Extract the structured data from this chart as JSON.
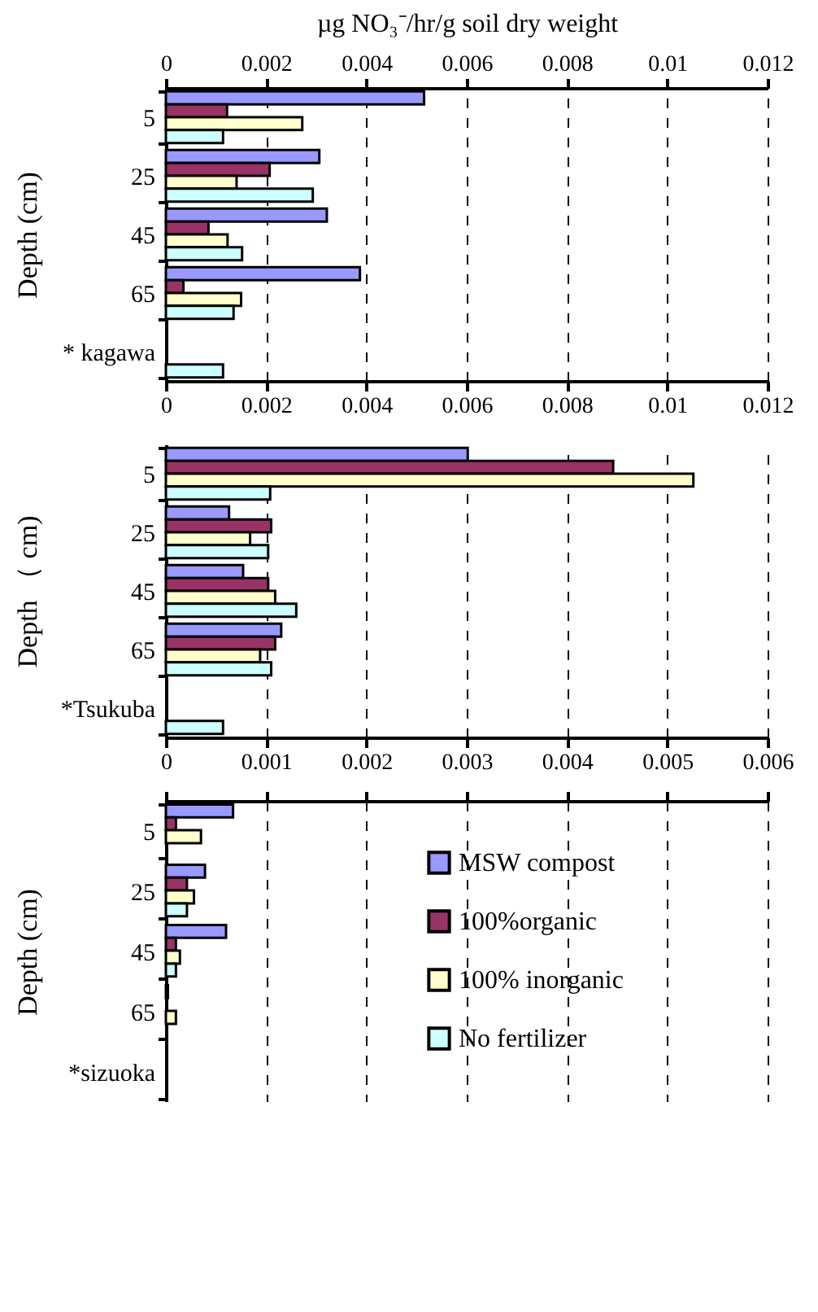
{
  "chart_data": [
    {
      "type": "bar",
      "orientation": "horizontal",
      "x2label": "µg NO₃⁻/hr/g soil dry weight",
      "ylabel": "Depth  (cm)",
      "categories": [
        "5",
        "25",
        "45",
        "65",
        "* kagawa"
      ],
      "series": [
        {
          "color": "#9999ff",
          "values": [
            0.00515,
            0.00306,
            0.00321,
            0.00387,
            null
          ]
        },
        {
          "color": "#993366",
          "values": [
            0.00122,
            0.00207,
            0.00085,
            0.00035,
            null
          ]
        },
        {
          "color": "#ffffcc",
          "values": [
            0.00272,
            0.00141,
            0.00123,
            0.0015,
            null
          ]
        },
        {
          "color": "#ccffff",
          "values": [
            0.00114,
            0.00293,
            0.00152,
            0.00135,
            0.00114
          ]
        }
      ],
      "xlim": [
        0,
        0.012
      ],
      "xticks": [
        0,
        0.002,
        0.004,
        0.006,
        0.008,
        0.01,
        0.012
      ],
      "x2lim": [
        0,
        0.012
      ],
      "x2ticks": [
        0,
        0.002,
        0.004,
        0.006,
        0.008,
        0.01,
        0.012
      ],
      "grid": "x"
    },
    {
      "type": "bar",
      "orientation": "horizontal",
      "ylabel": "Depth （ cm)",
      "categories": [
        "5",
        "25",
        "45",
        "65",
        "*Tsukuba"
      ],
      "series": [
        {
          "color": "#9999ff",
          "values": [
            0.00301,
            0.00063,
            0.00077,
            0.00115,
            null
          ]
        },
        {
          "color": "#993366",
          "values": [
            0.00446,
            0.00105,
            0.00102,
            0.00109,
            null
          ]
        },
        {
          "color": "#ffffcc",
          "values": [
            0.00526,
            0.00084,
            0.00109,
            0.00094,
            null
          ]
        },
        {
          "color": "#ccffff",
          "values": [
            0.00104,
            0.00102,
            0.0013,
            0.00105,
            0.00057
          ]
        }
      ],
      "xlim": [
        0,
        0.006
      ],
      "xticks": [
        0,
        0.001,
        0.002,
        0.003,
        0.004,
        0.005,
        0.006
      ],
      "grid": "x"
    },
    {
      "type": "bar",
      "orientation": "horizontal",
      "ylabel": "Depth  (cm)",
      "categories": [
        "5",
        "25",
        "45",
        "65",
        "*sizuoka"
      ],
      "series": [
        {
          "name": "MSW compost",
          "color": "#9999ff",
          "values": [
            0.00067,
            0.00039,
            0.0006,
            2e-05,
            null
          ]
        },
        {
          "name": "100%organic",
          "color": "#993366",
          "values": [
            0.0001,
            0.00021,
            0.0001,
            null,
            null
          ]
        },
        {
          "name": "100% inorganic",
          "color": "#ffffcc",
          "values": [
            0.00035,
            0.00028,
            0.00014,
            0.0001,
            null
          ]
        },
        {
          "name": "No fertilizer",
          "color": "#ccffff",
          "values": [
            null,
            0.00021,
            0.0001,
            null,
            null
          ]
        }
      ],
      "xlim": [
        0,
        0.006
      ],
      "xticks": [
        0,
        0.001,
        0.002,
        0.003,
        0.004,
        0.005,
        0.006
      ],
      "tick_labels": "y",
      "grid": "x",
      "legend": "right"
    }
  ]
}
